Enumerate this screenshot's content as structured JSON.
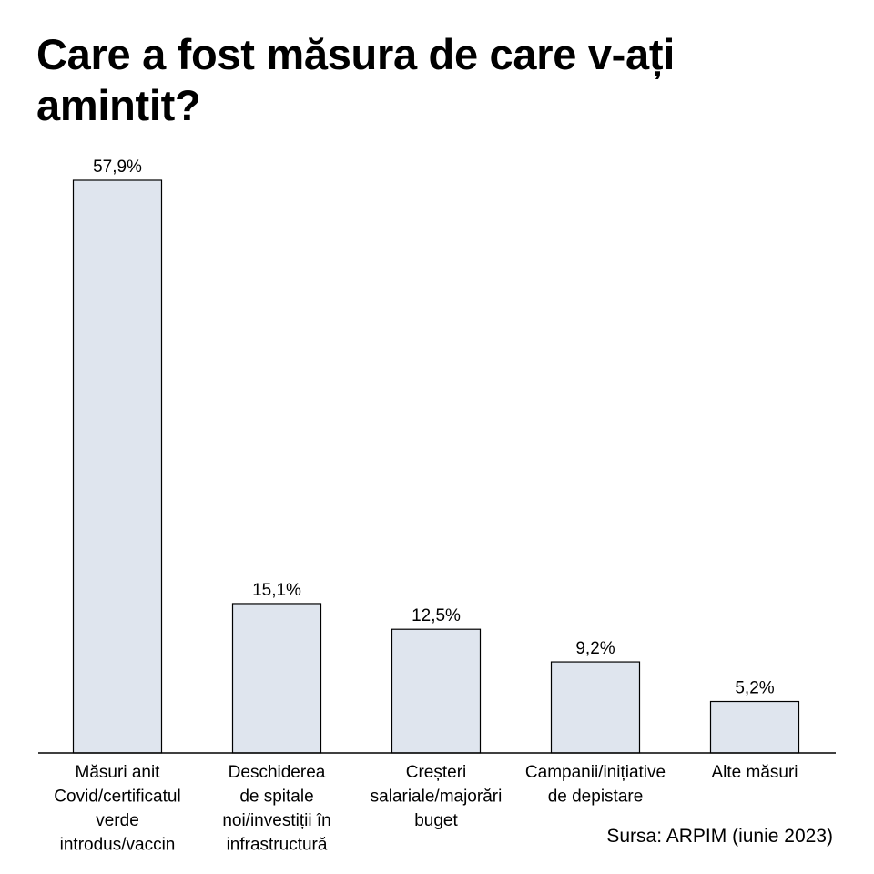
{
  "chart_data": {
    "type": "bar",
    "title": "Care a fost măsura de care v-ați amintit?",
    "categories": [
      [
        "Măsuri anit",
        "Covid/certificatul",
        "verde",
        "introdus/vaccin"
      ],
      [
        "Deschiderea",
        "de spitale",
        "noi/investiții în",
        "infrastructură"
      ],
      [
        "Creșteri",
        "salariale/majorări",
        "buget"
      ],
      [
        "Campanii/inițiative",
        "de depistare"
      ],
      [
        "Alte măsuri"
      ]
    ],
    "values": [
      57.9,
      15.1,
      12.5,
      9.2,
      5.2
    ],
    "value_labels": [
      "57,9%",
      "15,1%",
      "12,5%",
      "9,2%",
      "5,2%"
    ],
    "unit": "%",
    "ylim": [
      0,
      57.9
    ],
    "grid": false,
    "legend": "none",
    "source": "Sursa: ARPIM (iunie 2023)",
    "colors": {
      "bar_fill": "#dfe5ee",
      "bar_stroke": "#000000",
      "axis": "#000000"
    }
  }
}
